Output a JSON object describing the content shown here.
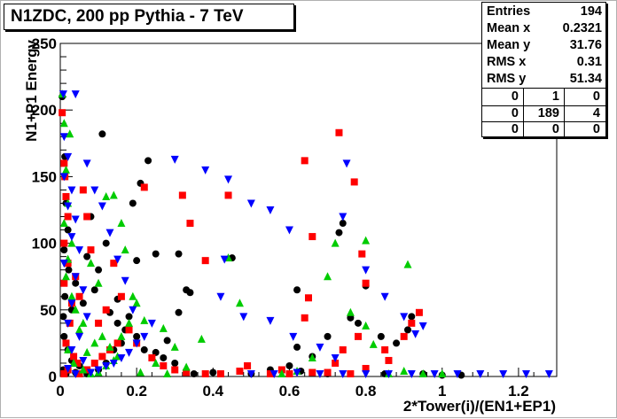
{
  "chart_data": {
    "type": "scatter",
    "title": "N1ZDC, 200 pp Pythia - 7 TeV",
    "xlabel": "2*Tower(i)/(EN1+EP1)",
    "ylabel": "N1+P1 Energy",
    "xlim": [
      0,
      1.3
    ],
    "ylim": [
      0,
      250
    ],
    "x_ticks": [
      "0",
      "0.2",
      "0.4",
      "0.6",
      "0.8",
      "1",
      "1.2"
    ],
    "y_ticks": [
      "0",
      "50",
      "100",
      "150",
      "200",
      "250"
    ],
    "grid": false,
    "legend": "none",
    "stats": {
      "Entries": "194",
      "Mean x": "0.2321",
      "Mean y": "31.76",
      "RMS x": "0.31",
      "RMS y": "51.34"
    },
    "overflow_table": [
      [
        "0",
        "1",
        "0"
      ],
      [
        "0",
        "189",
        "4"
      ],
      [
        "0",
        "0",
        "0"
      ]
    ],
    "series": [
      {
        "marker": "circle",
        "color": "#000000",
        "points": [
          [
            0.005,
            210
          ],
          [
            0.012,
            165
          ],
          [
            0.015,
            130
          ],
          [
            0.02,
            110
          ],
          [
            0.01,
            95
          ],
          [
            0.022,
            80
          ],
          [
            0.012,
            60
          ],
          [
            0.03,
            50
          ],
          [
            0.008,
            45
          ],
          [
            0.01,
            30
          ],
          [
            0.02,
            20
          ],
          [
            0.03,
            12
          ],
          [
            0.05,
            8
          ],
          [
            0.008,
            5
          ],
          [
            0.015,
            2
          ],
          [
            0.04,
            3
          ],
          [
            0.07,
            2
          ],
          [
            0.1,
            5
          ],
          [
            0.12,
            10
          ],
          [
            0.14,
            20
          ],
          [
            0.16,
            25
          ],
          [
            0.17,
            35
          ],
          [
            0.15,
            40
          ],
          [
            0.18,
            45
          ],
          [
            0.2,
            30
          ],
          [
            0.22,
            20
          ],
          [
            0.25,
            18
          ],
          [
            0.27,
            14
          ],
          [
            0.3,
            10
          ],
          [
            0.1,
            80
          ],
          [
            0.12,
            100
          ],
          [
            0.08,
            120
          ],
          [
            0.11,
            182
          ],
          [
            0.23,
            162
          ],
          [
            0.21,
            145
          ],
          [
            0.19,
            130
          ],
          [
            0.25,
            92
          ],
          [
            0.31,
            92
          ],
          [
            0.33,
            65
          ],
          [
            0.34,
            63
          ],
          [
            0.28,
            27
          ],
          [
            0.2,
            87
          ],
          [
            0.31,
            48
          ],
          [
            0.45,
            89
          ],
          [
            0.5,
            2
          ],
          [
            0.55,
            5
          ],
          [
            0.6,
            8
          ],
          [
            0.62,
            22
          ],
          [
            0.66,
            15
          ],
          [
            0.7,
            30
          ],
          [
            0.73,
            108
          ],
          [
            0.74,
            115
          ],
          [
            0.62,
            65
          ],
          [
            0.76,
            44
          ],
          [
            0.8,
            68
          ],
          [
            0.78,
            40
          ],
          [
            0.84,
            30
          ],
          [
            0.92,
            45
          ],
          [
            0.91,
            35
          ],
          [
            0.88,
            25
          ],
          [
            0.63,
            4
          ],
          [
            0.7,
            2
          ],
          [
            0.85,
            2
          ],
          [
            0.95,
            2
          ],
          [
            1.0,
            1
          ],
          [
            1.05,
            1
          ],
          [
            0.4,
            3
          ],
          [
            0.35,
            2
          ],
          [
            0.06,
            55
          ],
          [
            0.04,
            70
          ],
          [
            0.07,
            90
          ],
          [
            0.09,
            65
          ],
          [
            0.13,
            48
          ],
          [
            0.15,
            58
          ]
        ]
      },
      {
        "marker": "square",
        "color": "#ff0000",
        "points": [
          [
            0.005,
            198
          ],
          [
            0.01,
            160
          ],
          [
            0.012,
            150
          ],
          [
            0.015,
            135
          ],
          [
            0.02,
            120
          ],
          [
            0.01,
            100
          ],
          [
            0.02,
            85
          ],
          [
            0.01,
            70
          ],
          [
            0.03,
            55
          ],
          [
            0.025,
            40
          ],
          [
            0.015,
            25
          ],
          [
            0.035,
            15
          ],
          [
            0.045,
            10
          ],
          [
            0.02,
            5
          ],
          [
            0.01,
            2
          ],
          [
            0.05,
            2
          ],
          [
            0.07,
            5
          ],
          [
            0.09,
            10
          ],
          [
            0.11,
            15
          ],
          [
            0.13,
            20
          ],
          [
            0.15,
            25
          ],
          [
            0.05,
            60
          ],
          [
            0.04,
            75
          ],
          [
            0.08,
            95
          ],
          [
            0.07,
            120
          ],
          [
            0.06,
            140
          ],
          [
            0.16,
            60
          ],
          [
            0.14,
            85
          ],
          [
            0.22,
            142
          ],
          [
            0.32,
            136
          ],
          [
            0.44,
            136
          ],
          [
            0.34,
            115
          ],
          [
            0.38,
            87
          ],
          [
            0.47,
            4
          ],
          [
            0.49,
            8
          ],
          [
            0.55,
            2
          ],
          [
            0.58,
            5
          ],
          [
            0.64,
            44
          ],
          [
            0.64,
            162
          ],
          [
            0.66,
            105
          ],
          [
            0.65,
            59
          ],
          [
            0.73,
            183
          ],
          [
            0.77,
            146
          ],
          [
            0.79,
            92
          ],
          [
            0.8,
            70
          ],
          [
            0.78,
            30
          ],
          [
            0.74,
            20
          ],
          [
            0.72,
            10
          ],
          [
            0.8,
            6
          ],
          [
            0.85,
            20
          ],
          [
            0.86,
            12
          ],
          [
            0.94,
            48
          ],
          [
            0.92,
            40
          ],
          [
            0.9,
            30
          ],
          [
            0.1,
            40
          ],
          [
            0.12,
            50
          ],
          [
            0.18,
            35
          ],
          [
            0.2,
            25
          ],
          [
            0.24,
            14
          ],
          [
            0.27,
            8
          ],
          [
            0.3,
            5
          ],
          [
            0.33,
            3
          ],
          [
            0.38,
            2
          ],
          [
            0.42,
            2
          ],
          [
            0.6,
            2
          ],
          [
            0.66,
            3
          ],
          [
            0.7,
            3
          ],
          [
            0.76,
            2
          ]
        ]
      },
      {
        "marker": "triangle-up",
        "color": "#00cc00",
        "points": [
          [
            0.005,
            212
          ],
          [
            0.01,
            190
          ],
          [
            0.025,
            182
          ],
          [
            0.015,
            155
          ],
          [
            0.02,
            130
          ],
          [
            0.01,
            115
          ],
          [
            0.03,
            100
          ],
          [
            0.02,
            88
          ],
          [
            0.015,
            75
          ],
          [
            0.03,
            60
          ],
          [
            0.04,
            50
          ],
          [
            0.05,
            35
          ],
          [
            0.02,
            20
          ],
          [
            0.035,
            10
          ],
          [
            0.06,
            5
          ],
          [
            0.08,
            2
          ],
          [
            0.1,
            3
          ],
          [
            0.12,
            8
          ],
          [
            0.14,
            12
          ],
          [
            0.16,
            30
          ],
          [
            0.18,
            40
          ],
          [
            0.2,
            55
          ],
          [
            0.12,
            135
          ],
          [
            0.14,
            136
          ],
          [
            0.16,
            115
          ],
          [
            0.17,
            95
          ],
          [
            0.1,
            70
          ],
          [
            0.08,
            85
          ],
          [
            0.22,
            42
          ],
          [
            0.27,
            36
          ],
          [
            0.3,
            22
          ],
          [
            0.33,
            7
          ],
          [
            0.37,
            28
          ],
          [
            0.44,
            89
          ],
          [
            0.47,
            55
          ],
          [
            0.58,
            2
          ],
          [
            0.62,
            4
          ],
          [
            0.66,
            14
          ],
          [
            0.7,
            75
          ],
          [
            0.72,
            100
          ],
          [
            0.76,
            48
          ],
          [
            0.8,
            102
          ],
          [
            0.8,
            38
          ],
          [
            0.82,
            24
          ],
          [
            0.86,
            2
          ],
          [
            0.9,
            4
          ],
          [
            0.91,
            84
          ],
          [
            0.95,
            2
          ],
          [
            1.0,
            2
          ],
          [
            0.06,
            40
          ],
          [
            0.07,
            18
          ],
          [
            0.09,
            25
          ],
          [
            0.11,
            30
          ],
          [
            0.13,
            22
          ],
          [
            0.15,
            15
          ],
          [
            0.19,
            60
          ],
          [
            0.21,
            3
          ],
          [
            0.25,
            10
          ],
          [
            0.28,
            2
          ]
        ]
      },
      {
        "marker": "triangle-down",
        "color": "#0000ff",
        "points": [
          [
            0.008,
            212
          ],
          [
            0.04,
            212
          ],
          [
            0.01,
            180
          ],
          [
            0.02,
            165
          ],
          [
            0.01,
            150
          ],
          [
            0.03,
            140
          ],
          [
            0.02,
            128
          ],
          [
            0.04,
            118
          ],
          [
            0.03,
            105
          ],
          [
            0.05,
            95
          ],
          [
            0.01,
            85
          ],
          [
            0.04,
            75
          ],
          [
            0.06,
            65
          ],
          [
            0.03,
            55
          ],
          [
            0.07,
            45
          ],
          [
            0.02,
            40
          ],
          [
            0.05,
            30
          ],
          [
            0.03,
            20
          ],
          [
            0.06,
            12
          ],
          [
            0.02,
            6
          ],
          [
            0.04,
            2
          ],
          [
            0.08,
            3
          ],
          [
            0.1,
            5
          ],
          [
            0.12,
            8
          ],
          [
            0.14,
            10
          ],
          [
            0.16,
            14
          ],
          [
            0.18,
            18
          ],
          [
            0.2,
            25
          ],
          [
            0.22,
            30
          ],
          [
            0.24,
            40
          ],
          [
            0.3,
            163
          ],
          [
            0.38,
            155
          ],
          [
            0.44,
            148
          ],
          [
            0.5,
            130
          ],
          [
            0.55,
            125
          ],
          [
            0.6,
            110
          ],
          [
            0.42,
            60
          ],
          [
            0.43,
            88
          ],
          [
            0.48,
            45
          ],
          [
            0.55,
            42
          ],
          [
            0.61,
            30
          ],
          [
            0.68,
            22
          ],
          [
            0.72,
            14
          ],
          [
            0.75,
            160
          ],
          [
            0.74,
            120
          ],
          [
            0.8,
            80
          ],
          [
            0.85,
            60
          ],
          [
            0.9,
            45
          ],
          [
            0.93,
            32
          ],
          [
            0.95,
            38
          ],
          [
            0.5,
            2
          ],
          [
            0.56,
            2
          ],
          [
            0.62,
            3
          ],
          [
            0.68,
            2
          ],
          [
            0.74,
            2
          ],
          [
            0.8,
            2
          ],
          [
            0.86,
            2
          ],
          [
            0.92,
            2
          ],
          [
            0.98,
            2
          ],
          [
            1.04,
            2
          ],
          [
            1.1,
            2
          ],
          [
            1.16,
            2
          ],
          [
            1.22,
            2
          ],
          [
            1.28,
            2
          ],
          [
            0.07,
            160
          ],
          [
            0.09,
            140
          ],
          [
            0.11,
            128
          ],
          [
            0.13,
            108
          ],
          [
            0.15,
            88
          ],
          [
            0.17,
            72
          ],
          [
            0.19,
            50
          ]
        ]
      }
    ]
  }
}
